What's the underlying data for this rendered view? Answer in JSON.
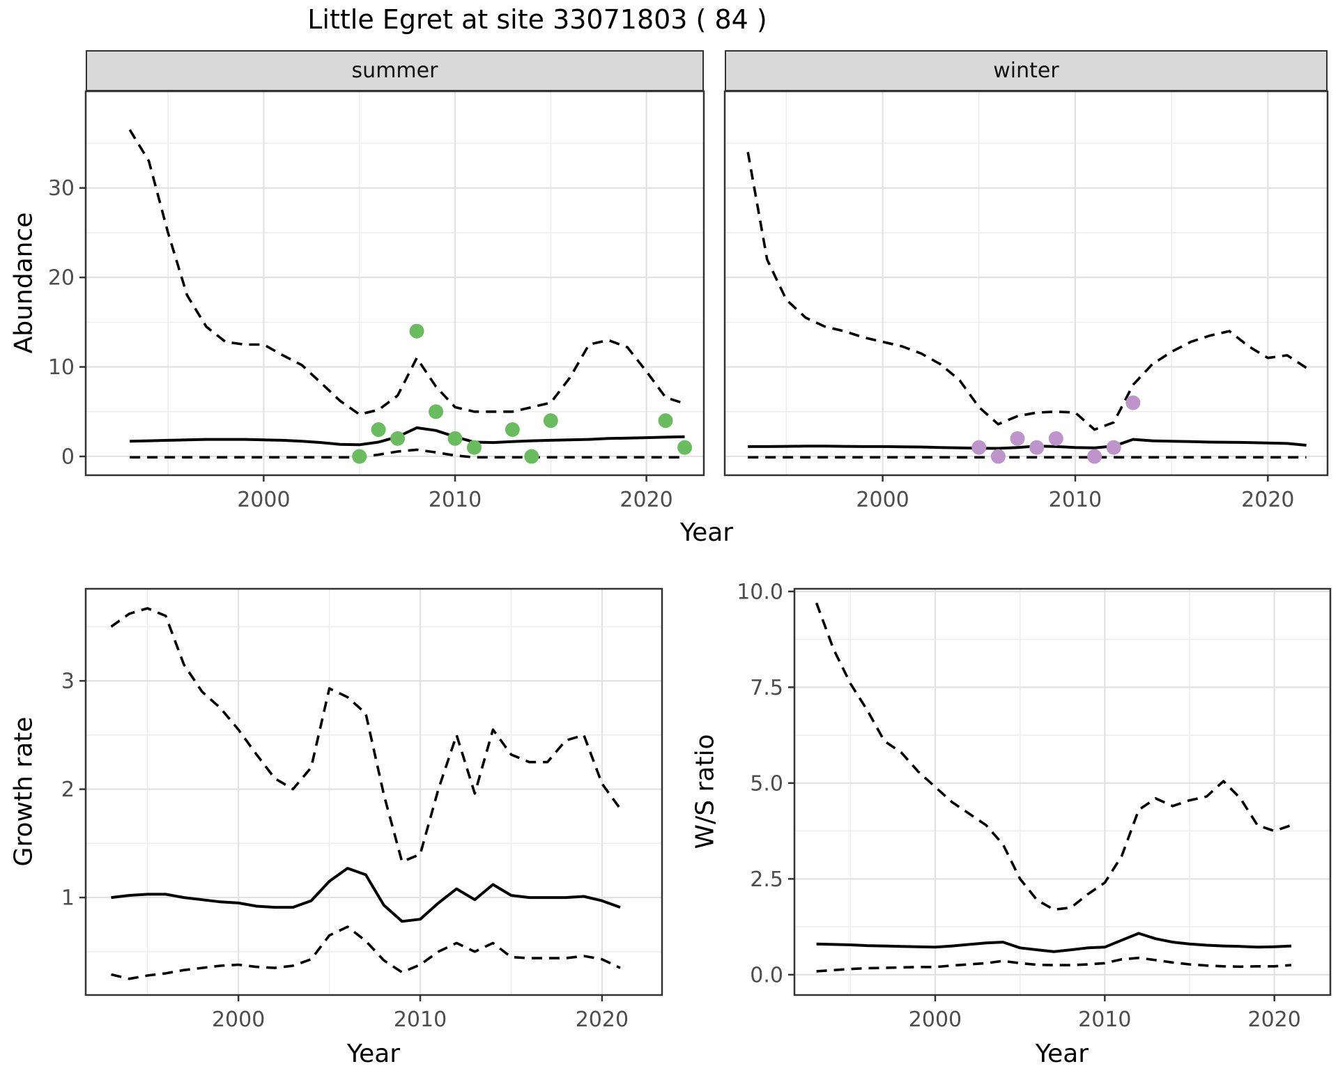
{
  "title": "Little Egret at site 33071803 ( 84 )",
  "facets": {
    "summer": "summer",
    "winter": "winter"
  },
  "axis_titles": {
    "abundance": "Abundance",
    "growth_rate": "Growth rate",
    "ws_ratio": "W/S ratio",
    "year": "Year"
  },
  "colors": {
    "summer_points": "#6abd5f",
    "winter_points": "#bd95cb",
    "line": "#000000",
    "strip_bg": "#d9d9d9",
    "panel_border": "#333333",
    "grid_major": "#e2e2e2",
    "grid_minor": "#ededed",
    "tick_text": "#4d4d4d"
  },
  "chart_data": [
    {
      "id": "abundance_summer",
      "type": "line",
      "facet": "summer",
      "xlabel": "Year",
      "ylabel": "Abundance",
      "xlim": [
        1990.7,
        2023.0
      ],
      "ylim": [
        -2.1,
        40.8
      ],
      "xticks": [
        2000,
        2010,
        2020
      ],
      "xtick_labels": [
        "2000",
        "2010",
        "2020"
      ],
      "yticks": [
        0,
        10,
        20,
        30
      ],
      "ytick_labels": [
        "0",
        "10",
        "20",
        "30"
      ],
      "x_minor": [
        1995,
        2005,
        2015
      ],
      "y_minor": [
        5,
        15,
        25,
        35
      ],
      "years": [
        1993,
        1994,
        1995,
        1996,
        1997,
        1998,
        1999,
        2000,
        2001,
        2002,
        2003,
        2004,
        2005,
        2006,
        2007,
        2008,
        2009,
        2010,
        2011,
        2012,
        2013,
        2014,
        2015,
        2016,
        2017,
        2018,
        2019,
        2020,
        2021,
        2022
      ],
      "series": [
        {
          "name": "upper_ci",
          "style": "dashed",
          "values": [
            36.5,
            33,
            25,
            18,
            14.5,
            12.8,
            12.5,
            12.5,
            11.3,
            10.2,
            8.2,
            6.2,
            4.7,
            5.2,
            6.8,
            11,
            7.8,
            5.5,
            5,
            5,
            5,
            5.5,
            6,
            8.8,
            12.5,
            13,
            12.2,
            9.5,
            6.6,
            5.9
          ]
        },
        {
          "name": "median",
          "style": "solid",
          "values": [
            1.7,
            1.75,
            1.8,
            1.85,
            1.9,
            1.9,
            1.9,
            1.85,
            1.8,
            1.7,
            1.55,
            1.35,
            1.3,
            1.6,
            2.2,
            3.2,
            2.9,
            2.2,
            1.6,
            1.55,
            1.65,
            1.75,
            1.8,
            1.85,
            1.9,
            2,
            2.05,
            2.1,
            2.15,
            2.2
          ]
        },
        {
          "name": "lower_ci",
          "style": "dashed",
          "values": [
            -0.1,
            -0.1,
            -0.1,
            -0.1,
            -0.1,
            -0.1,
            -0.1,
            -0.1,
            -0.1,
            -0.1,
            -0.1,
            -0.1,
            -0.1,
            0.2,
            0.55,
            0.75,
            0.45,
            0.1,
            -0.1,
            -0.1,
            -0.1,
            -0.1,
            -0.1,
            -0.1,
            -0.1,
            -0.1,
            -0.1,
            -0.1,
            -0.1,
            -0.1
          ]
        }
      ],
      "points": {
        "color": "#6abd5f",
        "x": [
          2005,
          2006,
          2007,
          2008,
          2009,
          2010,
          2011,
          2013,
          2014,
          2015,
          2021,
          2022
        ],
        "y": [
          0,
          3,
          2,
          14,
          5,
          2,
          1,
          3,
          0,
          4,
          4,
          1
        ]
      }
    },
    {
      "id": "abundance_winter",
      "type": "line",
      "facet": "winter",
      "xlabel": "Year",
      "ylabel": "Abundance",
      "xlim": [
        1991.8,
        2023.1
      ],
      "ylim": [
        -2.1,
        40.8
      ],
      "xticks": [
        2000,
        2010,
        2020
      ],
      "xtick_labels": [
        "2000",
        "2010",
        "2020"
      ],
      "yticks": [
        0,
        10,
        20,
        30
      ],
      "ytick_labels": [
        "0",
        "10",
        "20",
        "30"
      ],
      "x_minor": [
        1995,
        2005,
        2015
      ],
      "y_minor": [
        5,
        15,
        25,
        35
      ],
      "years": [
        1993,
        1994,
        1995,
        1996,
        1997,
        1998,
        1999,
        2000,
        2001,
        2002,
        2003,
        2004,
        2005,
        2006,
        2007,
        2008,
        2009,
        2010,
        2011,
        2012,
        2013,
        2014,
        2015,
        2016,
        2017,
        2018,
        2019,
        2020,
        2021,
        2022
      ],
      "series": [
        {
          "name": "upper_ci",
          "style": "dashed",
          "values": [
            34,
            22,
            17.5,
            15.5,
            14.5,
            14,
            13.3,
            12.8,
            12.3,
            11.5,
            10.3,
            8.5,
            5.5,
            3.6,
            4.5,
            4.9,
            5,
            4.9,
            3,
            3.8,
            8,
            10.3,
            11.7,
            12.8,
            13.5,
            14,
            12.3,
            11,
            11.3,
            9.9
          ]
        },
        {
          "name": "median",
          "style": "solid",
          "values": [
            1.1,
            1.1,
            1.12,
            1.15,
            1.15,
            1.12,
            1.1,
            1.1,
            1.08,
            1.05,
            1,
            0.95,
            0.92,
            0.9,
            1,
            1.15,
            1.1,
            1,
            0.95,
            1.15,
            1.9,
            1.75,
            1.7,
            1.65,
            1.6,
            1.58,
            1.55,
            1.5,
            1.45,
            1.25
          ]
        },
        {
          "name": "lower_ci",
          "style": "dashed",
          "values": [
            -0.1,
            -0.1,
            -0.1,
            -0.1,
            -0.1,
            -0.1,
            -0.1,
            -0.1,
            -0.1,
            -0.1,
            -0.1,
            -0.1,
            -0.1,
            -0.1,
            -0.1,
            -0.1,
            -0.1,
            -0.1,
            -0.1,
            -0.1,
            -0.1,
            -0.1,
            -0.1,
            -0.1,
            -0.1,
            -0.1,
            -0.1,
            -0.1,
            -0.1,
            -0.1
          ]
        }
      ],
      "points": {
        "color": "#bd95cb",
        "x": [
          2005,
          2006,
          2007,
          2008,
          2009,
          2011,
          2012,
          2013
        ],
        "y": [
          1,
          0,
          2,
          1,
          2,
          0,
          1,
          6
        ]
      }
    },
    {
      "id": "growth_rate",
      "type": "line",
      "facet": null,
      "xlabel": "Year",
      "ylabel": "Growth rate",
      "xlim": [
        1991.6,
        2023.3
      ],
      "ylim": [
        0.1,
        3.85
      ],
      "xticks": [
        2000,
        2010,
        2020
      ],
      "xtick_labels": [
        "2000",
        "2010",
        "2020"
      ],
      "yticks": [
        1,
        2,
        3
      ],
      "ytick_labels": [
        "1",
        "2",
        "3"
      ],
      "x_minor": [
        1995,
        2005,
        2015
      ],
      "y_minor": [
        0.5,
        1.5,
        2.5,
        3.5
      ],
      "years": [
        1993,
        1994,
        1995,
        1996,
        1997,
        1998,
        1999,
        2000,
        2001,
        2002,
        2003,
        2004,
        2005,
        2006,
        2007,
        2008,
        2009,
        2010,
        2011,
        2012,
        2013,
        2014,
        2015,
        2016,
        2017,
        2018,
        2019,
        2020,
        2021
      ],
      "series": [
        {
          "name": "upper_ci",
          "style": "dashed",
          "values": [
            3.5,
            3.62,
            3.67,
            3.6,
            3.15,
            2.9,
            2.75,
            2.55,
            2.32,
            2.1,
            2,
            2.2,
            2.93,
            2.85,
            2.7,
            1.95,
            1.33,
            1.4,
            2,
            2.5,
            1.96,
            2.55,
            2.32,
            2.25,
            2.25,
            2.45,
            2.5,
            2.05,
            1.82
          ]
        },
        {
          "name": "median",
          "style": "solid",
          "values": [
            1,
            1.02,
            1.03,
            1.03,
            1,
            0.98,
            0.96,
            0.95,
            0.92,
            0.91,
            0.91,
            0.97,
            1.15,
            1.27,
            1.21,
            0.93,
            0.78,
            0.8,
            0.95,
            1.08,
            0.98,
            1.12,
            1.02,
            1,
            1,
            1,
            1.01,
            0.97,
            0.91
          ]
        },
        {
          "name": "lower_ci",
          "style": "dashed",
          "values": [
            0.29,
            0.25,
            0.28,
            0.3,
            0.33,
            0.35,
            0.37,
            0.38,
            0.36,
            0.35,
            0.37,
            0.43,
            0.65,
            0.73,
            0.6,
            0.42,
            0.31,
            0.38,
            0.5,
            0.58,
            0.5,
            0.58,
            0.45,
            0.44,
            0.44,
            0.44,
            0.46,
            0.43,
            0.35
          ]
        }
      ],
      "points": null
    },
    {
      "id": "ws_ratio",
      "type": "line",
      "facet": null,
      "xlabel": "Year",
      "ylabel": "W/S ratio",
      "xlim": [
        1991.7,
        2023.3
      ],
      "ylim": [
        -0.53,
        10.07
      ],
      "xticks": [
        2000,
        2010,
        2020
      ],
      "xtick_labels": [
        "2000",
        "2010",
        "2020"
      ],
      "yticks": [
        0,
        2.5,
        5,
        7.5,
        10
      ],
      "ytick_labels": [
        "0.0",
        "2.5",
        "5.0",
        "7.5",
        "10.0"
      ],
      "x_minor": [
        1995,
        2005,
        2015
      ],
      "y_minor": [
        1.25,
        3.75,
        6.25,
        8.75
      ],
      "years": [
        1993,
        1994,
        1995,
        1996,
        1997,
        1998,
        1999,
        2000,
        2001,
        2002,
        2003,
        2004,
        2005,
        2006,
        2007,
        2008,
        2009,
        2010,
        2011,
        2012,
        2013,
        2014,
        2015,
        2016,
        2017,
        2018,
        2019,
        2020,
        2021
      ],
      "series": [
        {
          "name": "upper_ci",
          "style": "dashed",
          "values": [
            9.7,
            8.5,
            7.6,
            6.9,
            6.1,
            5.8,
            5.3,
            4.9,
            4.5,
            4.2,
            3.9,
            3.4,
            2.5,
            1.95,
            1.7,
            1.75,
            2.1,
            2.4,
            3.1,
            4.3,
            4.6,
            4.4,
            4.55,
            4.65,
            5.05,
            4.6,
            3.9,
            3.75,
            3.9
          ]
        },
        {
          "name": "median",
          "style": "solid",
          "values": [
            0.8,
            0.79,
            0.78,
            0.76,
            0.75,
            0.74,
            0.73,
            0.72,
            0.75,
            0.79,
            0.83,
            0.85,
            0.7,
            0.65,
            0.6,
            0.65,
            0.7,
            0.72,
            0.9,
            1.08,
            0.94,
            0.85,
            0.8,
            0.77,
            0.75,
            0.74,
            0.72,
            0.73,
            0.75
          ]
        },
        {
          "name": "lower_ci",
          "style": "dashed",
          "values": [
            0.09,
            0.12,
            0.15,
            0.17,
            0.18,
            0.19,
            0.2,
            0.2,
            0.24,
            0.27,
            0.3,
            0.36,
            0.3,
            0.26,
            0.25,
            0.25,
            0.27,
            0.3,
            0.4,
            0.44,
            0.38,
            0.32,
            0.27,
            0.24,
            0.22,
            0.21,
            0.22,
            0.22,
            0.25
          ]
        }
      ],
      "points": null
    }
  ]
}
